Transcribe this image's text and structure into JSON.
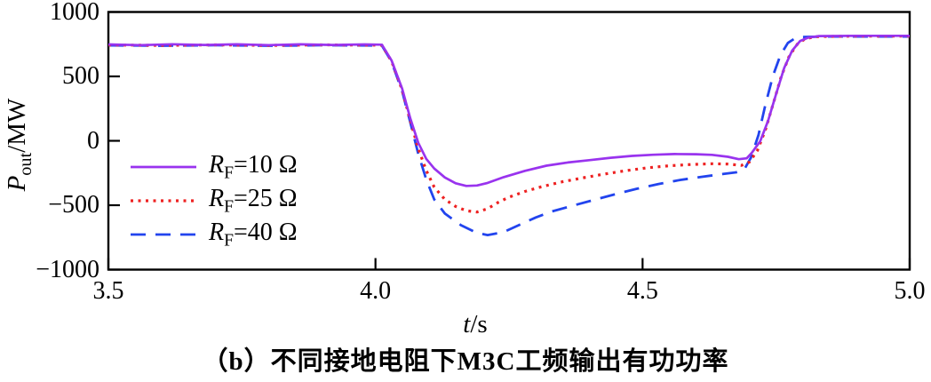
{
  "figure": {
    "caption": "（b）不同接地电阻下M3C工频输出有功功率"
  },
  "chart_data": {
    "type": "line",
    "title": "",
    "xlabel": {
      "var": "t",
      "rest": "/s"
    },
    "ylabel": {
      "var": "P",
      "sub": "out",
      "rest": "/MW"
    },
    "xlim": [
      3.5,
      5.0
    ],
    "ylim": [
      -1000,
      1000
    ],
    "grid": false,
    "legend_position": "inside-left-middle",
    "axis_color": "#000000",
    "background": "#FFFFFF",
    "x_ticks": {
      "values": [
        3.5,
        4.0,
        4.5,
        5.0
      ],
      "labels": [
        "3.5",
        "4.0",
        "4.5",
        "5.0"
      ]
    },
    "y_ticks": {
      "values": [
        1000,
        500,
        0,
        -500,
        -1000
      ],
      "labels": [
        "1000",
        "500",
        "0",
        "−500",
        "−1000"
      ]
    },
    "series": [
      {
        "name": "RF=10 Ω",
        "legend": {
          "var": "R",
          "sub": "F",
          "rest": "=10 Ω"
        },
        "color": "#9933EE",
        "line_style": "solid",
        "points": [
          [
            3.5,
            748
          ],
          [
            3.56,
            743
          ],
          [
            3.62,
            750
          ],
          [
            3.68,
            744
          ],
          [
            3.74,
            749
          ],
          [
            3.8,
            743
          ],
          [
            3.86,
            749
          ],
          [
            3.92,
            744
          ],
          [
            3.98,
            748
          ],
          [
            4.012,
            746
          ],
          [
            4.03,
            625
          ],
          [
            4.05,
            405
          ],
          [
            4.065,
            175
          ],
          [
            4.08,
            -15
          ],
          [
            4.095,
            -140
          ],
          [
            4.11,
            -215
          ],
          [
            4.13,
            -285
          ],
          [
            4.15,
            -330
          ],
          [
            4.17,
            -350
          ],
          [
            4.19,
            -347
          ],
          [
            4.21,
            -327
          ],
          [
            4.24,
            -282
          ],
          [
            4.28,
            -233
          ],
          [
            4.32,
            -193
          ],
          [
            4.36,
            -168
          ],
          [
            4.4,
            -150
          ],
          [
            4.44,
            -132
          ],
          [
            4.48,
            -117
          ],
          [
            4.52,
            -108
          ],
          [
            4.56,
            -103
          ],
          [
            4.6,
            -104
          ],
          [
            4.63,
            -109
          ],
          [
            4.66,
            -124
          ],
          [
            4.68,
            -143
          ],
          [
            4.695,
            -136
          ],
          [
            4.705,
            -90
          ],
          [
            4.72,
            -5
          ],
          [
            4.735,
            155
          ],
          [
            4.75,
            365
          ],
          [
            4.765,
            565
          ],
          [
            4.78,
            700
          ],
          [
            4.795,
            775
          ],
          [
            4.81,
            801
          ],
          [
            4.83,
            813
          ],
          [
            4.9,
            815
          ],
          [
            5.0,
            815
          ]
        ]
      },
      {
        "name": "RF=25 Ω",
        "legend": {
          "var": "R",
          "sub": "F",
          "rest": "=25 Ω"
        },
        "color": "#EE2222",
        "line_style": "dotted",
        "points": [
          [
            3.5,
            744
          ],
          [
            3.6,
            741
          ],
          [
            3.7,
            745
          ],
          [
            3.8,
            741
          ],
          [
            3.9,
            745
          ],
          [
            4.0,
            743
          ],
          [
            4.012,
            742
          ],
          [
            4.03,
            620
          ],
          [
            4.05,
            395
          ],
          [
            4.065,
            160
          ],
          [
            4.08,
            -60
          ],
          [
            4.095,
            -230
          ],
          [
            4.11,
            -360
          ],
          [
            4.13,
            -455
          ],
          [
            4.15,
            -510
          ],
          [
            4.17,
            -543
          ],
          [
            4.19,
            -553
          ],
          [
            4.21,
            -527
          ],
          [
            4.23,
            -477
          ],
          [
            4.25,
            -437
          ],
          [
            4.28,
            -393
          ],
          [
            4.31,
            -357
          ],
          [
            4.35,
            -318
          ],
          [
            4.39,
            -286
          ],
          [
            4.43,
            -257
          ],
          [
            4.47,
            -231
          ],
          [
            4.51,
            -209
          ],
          [
            4.55,
            -194
          ],
          [
            4.59,
            -184
          ],
          [
            4.63,
            -178
          ],
          [
            4.66,
            -181
          ],
          [
            4.685,
            -191
          ],
          [
            4.7,
            -165
          ],
          [
            4.715,
            -75
          ],
          [
            4.73,
            85
          ],
          [
            4.745,
            295
          ],
          [
            4.76,
            505
          ],
          [
            4.775,
            662
          ],
          [
            4.79,
            752
          ],
          [
            4.805,
            793
          ],
          [
            4.825,
            809
          ],
          [
            4.9,
            813
          ],
          [
            5.0,
            813
          ]
        ]
      },
      {
        "name": "RF=40 Ω",
        "legend": {
          "var": "R",
          "sub": "F",
          "rest": "=40 Ω"
        },
        "color": "#2244EE",
        "line_style": "dashed",
        "points": [
          [
            3.5,
            741
          ],
          [
            3.6,
            738
          ],
          [
            3.7,
            742
          ],
          [
            3.8,
            738
          ],
          [
            3.9,
            742
          ],
          [
            4.0,
            740
          ],
          [
            4.012,
            739
          ],
          [
            4.03,
            615
          ],
          [
            4.05,
            385
          ],
          [
            4.065,
            145
          ],
          [
            4.08,
            -100
          ],
          [
            4.095,
            -300
          ],
          [
            4.11,
            -455
          ],
          [
            4.13,
            -565
          ],
          [
            4.16,
            -655
          ],
          [
            4.19,
            -715
          ],
          [
            4.21,
            -732
          ],
          [
            4.24,
            -708
          ],
          [
            4.27,
            -652
          ],
          [
            4.3,
            -595
          ],
          [
            4.33,
            -548
          ],
          [
            4.37,
            -503
          ],
          [
            4.41,
            -458
          ],
          [
            4.45,
            -413
          ],
          [
            4.49,
            -372
          ],
          [
            4.53,
            -335
          ],
          [
            4.57,
            -304
          ],
          [
            4.61,
            -280
          ],
          [
            4.65,
            -258
          ],
          [
            4.675,
            -245
          ],
          [
            4.69,
            -225
          ],
          [
            4.703,
            -130
          ],
          [
            4.717,
            45
          ],
          [
            4.73,
            280
          ],
          [
            4.744,
            505
          ],
          [
            4.758,
            665
          ],
          [
            4.772,
            760
          ],
          [
            4.786,
            797
          ],
          [
            4.8,
            806
          ],
          [
            4.85,
            810
          ],
          [
            5.0,
            810
          ]
        ]
      }
    ]
  }
}
